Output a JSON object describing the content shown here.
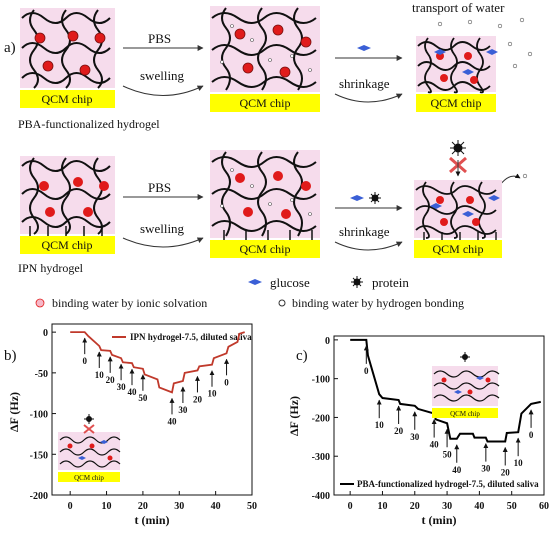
{
  "panel_a": {
    "label": "a)",
    "chip_label": "QCM chip",
    "row1": {
      "arrow_top": "PBS",
      "arrow_bottom": "swelling",
      "shrink_label": "shrinkage",
      "caption": "PBA-functionalized hydrogel",
      "annotation": "transport of water"
    },
    "row2": {
      "arrow_top": "PBS",
      "arrow_bottom": "swelling",
      "shrink_label": "shrinkage",
      "caption": "IPN hydrogel"
    },
    "legend": {
      "glucose": "glucose",
      "protein": "protein",
      "ionic": "binding water by ionic solvation",
      "hbond": "binding water by hydrogen bonding"
    },
    "colors": {
      "gel_bg": "#f6dcec",
      "chip": "#ffff00",
      "red": "#e01b1b",
      "glucose": "#3a5fd6",
      "inhibit": "#e05050"
    }
  },
  "panel_b": {
    "label": "b)",
    "legend": "IPN hydrogel-7.5, diluted saliva",
    "xlabel": "t (min)",
    "ylabel": "ΔF (Hz)",
    "chip_label": "QCM chip",
    "arrow_labels": [
      "0",
      "10",
      "20",
      "30",
      "40",
      "50",
      "40",
      "30",
      "20",
      "10",
      "0"
    ]
  },
  "panel_c": {
    "label": "c)",
    "legend": "PBA-functionalized hydrogel-7.5, diluted saliva",
    "xlabel": "t (min)",
    "ylabel": "ΔF (Hz)",
    "chip_label": "QCM chip",
    "arrow_labels": [
      "0",
      "10",
      "20",
      "30",
      "40",
      "50",
      "40",
      "30",
      "20",
      "10",
      "0"
    ]
  },
  "chart_data": [
    {
      "type": "line",
      "title": "",
      "xlabel": "t (min)",
      "ylabel": "ΔF (Hz)",
      "xlim": [
        -5,
        50
      ],
      "ylim": [
        -200,
        10
      ],
      "xticks": [
        0,
        10,
        20,
        30,
        40,
        50
      ],
      "yticks": [
        0,
        -50,
        -100,
        -150,
        -200
      ],
      "color": "#c0392b",
      "legend_position": "top-right",
      "series": [
        {
          "name": "IPN hydrogel-7.5, diluted saliva",
          "x": [
            0,
            4,
            5,
            8,
            8.5,
            11,
            11.5,
            14,
            14.5,
            17,
            17.5,
            20,
            20.5,
            24,
            24.5,
            28,
            28.5,
            31,
            31.5,
            35,
            35.5,
            39,
            39.5,
            43,
            43.5,
            46,
            46.5,
            48
          ],
          "y": [
            0,
            0,
            -5,
            -17,
            -22,
            -23,
            -28,
            -32,
            -37,
            -38,
            -43,
            -45,
            -52,
            -58,
            -68,
            -74,
            -63,
            -60,
            -50,
            -47,
            -42,
            -40,
            -32,
            -26,
            -18,
            -12,
            -2,
            0
          ]
        }
      ]
    },
    {
      "type": "line",
      "title": "",
      "xlabel": "t (min)",
      "ylabel": "ΔF (Hz)",
      "xlim": [
        -5,
        60
      ],
      "ylim": [
        -400,
        10
      ],
      "xticks": [
        0,
        10,
        20,
        30,
        40,
        50,
        60
      ],
      "yticks": [
        0,
        -100,
        -200,
        -300,
        -400
      ],
      "color": "#000000",
      "legend_position": "bottom-right",
      "series": [
        {
          "name": "PBA-functionalized hydrogel-7.5, diluted saliva",
          "x": [
            0,
            5,
            5.5,
            9,
            10,
            15,
            15.5,
            20,
            21,
            26,
            26.5,
            30,
            31,
            33,
            34,
            38,
            38.5,
            42,
            42.5,
            48,
            48.5,
            52,
            53,
            56,
            59
          ],
          "y": [
            0,
            0,
            -40,
            -140,
            -150,
            -155,
            -165,
            -170,
            -178,
            -190,
            -205,
            -215,
            -255,
            -255,
            -242,
            -242,
            -252,
            -252,
            -262,
            -262,
            -240,
            -238,
            -190,
            -165,
            -160
          ]
        }
      ]
    }
  ]
}
